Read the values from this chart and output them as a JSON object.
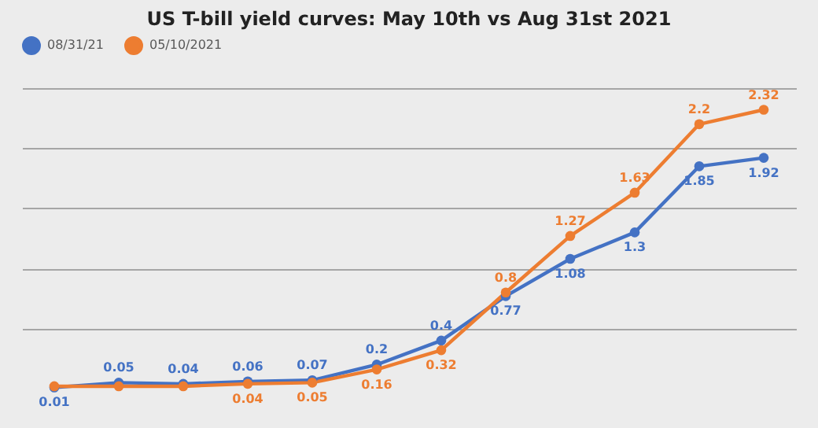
{
  "chart_data": {
    "type": "line",
    "title": "US T-bill yield curves: May 10th vs Aug 31st 2021",
    "categories": [
      null,
      null,
      null,
      null,
      null,
      null,
      null,
      null,
      null,
      null,
      null,
      null
    ],
    "series": [
      {
        "name": "08/31/21",
        "color": "#4472c4",
        "values": [
          0.01,
          0.05,
          0.04,
          0.06,
          0.07,
          0.2,
          0.4,
          0.77,
          1.08,
          1.3,
          1.85,
          1.92
        ],
        "value_labels": [
          "0.01",
          "0.05",
          "0.04",
          "0.06",
          "0.07",
          "0.2",
          "0.4",
          "0.77",
          "1.08",
          "1.3",
          "1.85",
          "1.92"
        ]
      },
      {
        "name": "05/10/2021",
        "color": "#ed7d31",
        "values": [
          0.02,
          0.02,
          0.02,
          0.04,
          0.05,
          0.16,
          0.32,
          0.8,
          1.27,
          1.63,
          2.2,
          2.32
        ],
        "value_labels": [
          null,
          null,
          null,
          "0.04",
          "0.05",
          "0.16",
          "0.32",
          "0.8",
          "1.27",
          "1.63",
          "2.2",
          "2.32"
        ]
      }
    ],
    "yticks": [
      {
        "value": 0.5,
        "label": null
      },
      {
        "value": 1.0,
        "label": null
      },
      {
        "value": 1.5,
        "label": null
      },
      {
        "value": 2.0,
        "label": null
      },
      {
        "value": 2.5,
        "label": null
      }
    ],
    "grid": "y",
    "legend": "top",
    "marker": "circle",
    "line_style": "solid",
    "tick_labels": false
  }
}
